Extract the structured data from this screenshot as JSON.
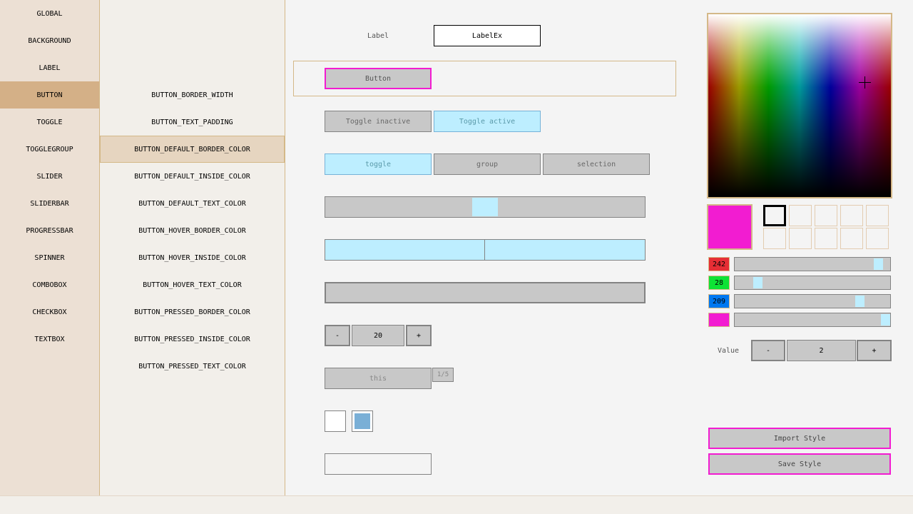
{
  "categories": [
    "GLOBAL",
    "BACKGROUND",
    "LABEL",
    "BUTTON",
    "TOGGLE",
    "TOGGLEGROUP",
    "SLIDER",
    "SLIDERBAR",
    "PROGRESSBAR",
    "SPINNER",
    "COMBOBOX",
    "CHECKBOX",
    "TEXTBOX"
  ],
  "selected_category": "BUTTON",
  "properties": [
    "BUTTON_BORDER_WIDTH",
    "BUTTON_TEXT_PADDING",
    "BUTTON_DEFAULT_BORDER_COLOR",
    "BUTTON_DEFAULT_INSIDE_COLOR",
    "BUTTON_DEFAULT_TEXT_COLOR",
    "BUTTON_HOVER_BORDER_COLOR",
    "BUTTON_HOVER_INSIDE_COLOR",
    "BUTTON_HOVER_TEXT_COLOR",
    "BUTTON_PRESSED_BORDER_COLOR",
    "BUTTON_PRESSED_INSIDE_COLOR",
    "BUTTON_PRESSED_TEXT_COLOR"
  ],
  "selected_property": "BUTTON_DEFAULT_BORDER_COLOR",
  "preview": {
    "label": "Label",
    "label_ex": "LabelEx",
    "button": "Button",
    "toggle_inactive": "Toggle inactive",
    "toggle_active": "Toggle active",
    "toggle_group": [
      "toggle",
      "group",
      "selection"
    ],
    "slider_value": 0.5,
    "sliderbar_value": 0.5,
    "progress_value": 0,
    "spinner": {
      "minus": "-",
      "value": "20",
      "plus": "+"
    },
    "combobox": {
      "value": "this",
      "count": "1/5"
    },
    "checkboxes": [
      false,
      true
    ],
    "textbox_value": ""
  },
  "picker": {
    "color": "#f21cd1",
    "r": "242",
    "g": "28",
    "b": "209",
    "a": 255,
    "value_label": "Value",
    "spinner": {
      "minus": "-",
      "value": "2",
      "plus": "+"
    },
    "import_label": "Import Style",
    "save_label": "Save Style"
  },
  "colors": {
    "accent": "#f21cd1",
    "selected": "#d4b087",
    "border": "#d4b888",
    "active": "#bdeeff"
  }
}
